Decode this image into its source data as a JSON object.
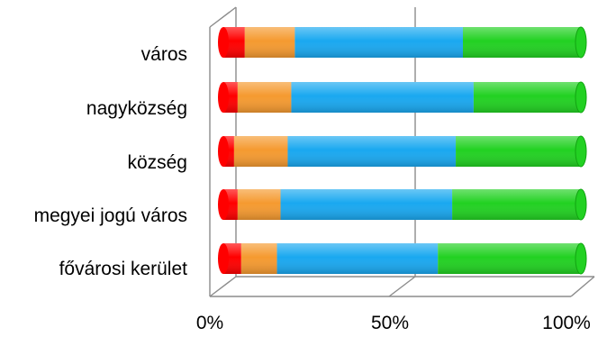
{
  "chart_data": {
    "type": "bar",
    "orientation": "horizontal",
    "stacked": "100%",
    "style": "3d-cylinder",
    "categories": [
      "fővárosi kerület",
      "megyei jogú város",
      "község",
      "nagyközség",
      "város"
    ],
    "series": [
      {
        "color": "#ff0000",
        "values": [
          5,
          4,
          3,
          4,
          6
        ]
      },
      {
        "color": "#f59a30",
        "values": [
          10,
          12,
          15,
          15,
          14
        ]
      },
      {
        "color": "#1aa8f0",
        "values": [
          45,
          48,
          47,
          51,
          47
        ]
      },
      {
        "color": "#22d122",
        "values": [
          40,
          36,
          35,
          30,
          33
        ]
      }
    ],
    "xlim": [
      0,
      100
    ],
    "x_ticks": [
      "0%",
      "50%",
      "100%"
    ],
    "grid": "vertical at 50%",
    "legend": "none"
  }
}
